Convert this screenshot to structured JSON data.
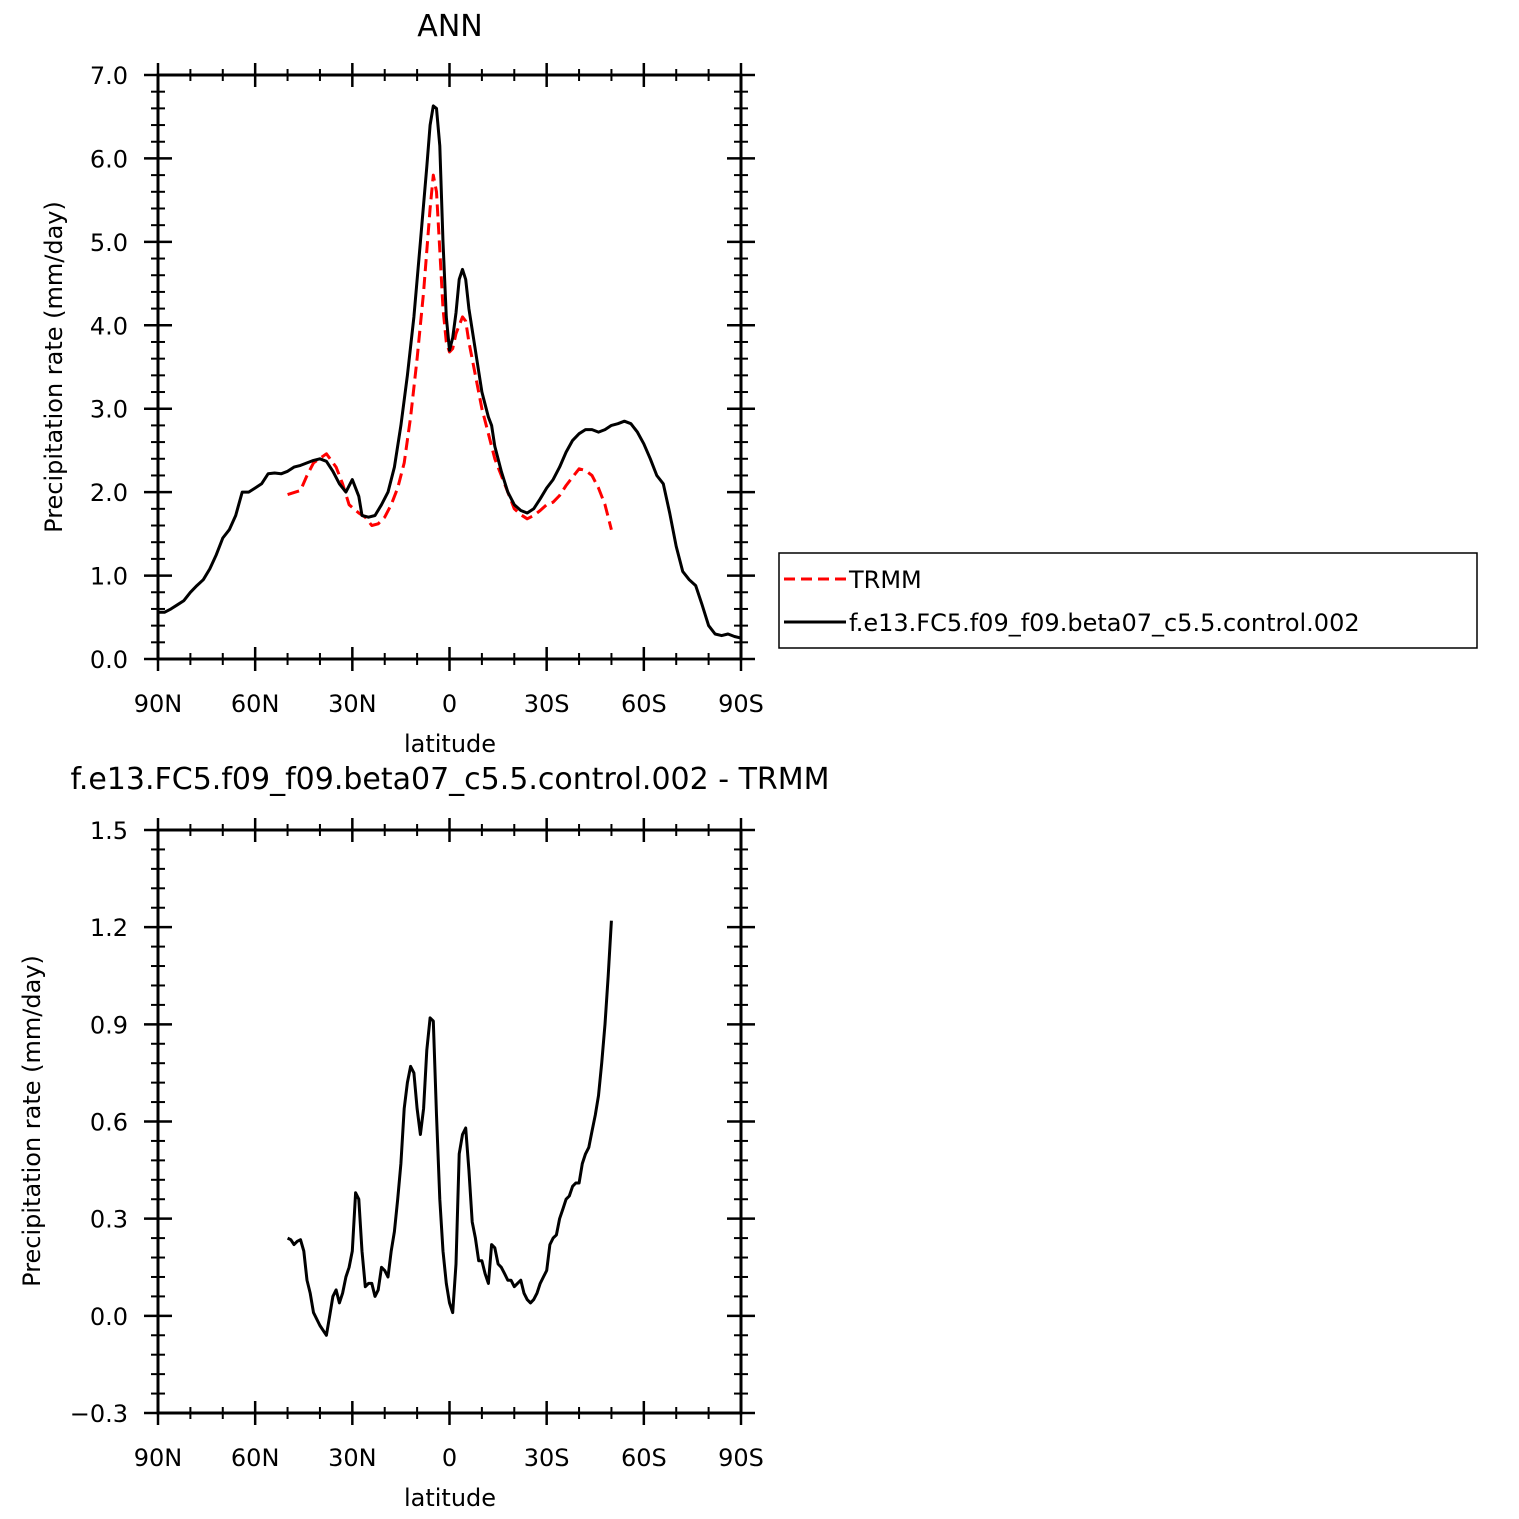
{
  "chart_data": [
    {
      "type": "line",
      "title": "ANN",
      "xlabel": "latitude",
      "ylabel": "Precipitation rate (mm/day)",
      "x_direction": "90N (left) to 90S (right); south latitudes shown as negative numbers",
      "xlim": [
        90,
        -90
      ],
      "ylim": [
        0,
        7
      ],
      "x_ticks": [
        90,
        60,
        30,
        0,
        -30,
        -60,
        -90
      ],
      "x_tick_labels": [
        "90N",
        "60N",
        "30N",
        "0",
        "30S",
        "60S",
        "90S"
      ],
      "y_ticks": [
        0,
        1,
        2,
        3,
        4,
        5,
        6,
        7
      ],
      "y_tick_labels": [
        "0.0",
        "1.0",
        "2.0",
        "3.0",
        "4.0",
        "5.0",
        "6.0",
        "7.0"
      ],
      "legend_position": "right",
      "series": [
        {
          "name": "TRMM",
          "color": "#ff0000",
          "dash": "dashed",
          "points": [
            [
              50,
              1.97
            ],
            [
              46,
              2.02
            ],
            [
              44,
              2.2
            ],
            [
              42,
              2.35
            ],
            [
              38,
              2.46
            ],
            [
              35,
              2.3
            ],
            [
              33,
              2.1
            ],
            [
              31,
              1.85
            ],
            [
              28,
              1.75
            ],
            [
              26,
              1.7
            ],
            [
              24,
              1.6
            ],
            [
              22,
              1.62
            ],
            [
              20,
              1.7
            ],
            [
              18,
              1.85
            ],
            [
              16,
              2.05
            ],
            [
              14,
              2.35
            ],
            [
              12,
              2.9
            ],
            [
              10,
              3.6
            ],
            [
              8,
              4.4
            ],
            [
              6,
              5.4
            ],
            [
              5,
              5.8
            ],
            [
              4,
              5.6
            ],
            [
              3,
              4.9
            ],
            [
              2,
              4.2
            ],
            [
              1,
              3.8
            ],
            [
              0,
              3.68
            ],
            [
              -1,
              3.72
            ],
            [
              -2,
              3.9
            ],
            [
              -4,
              4.1
            ],
            [
              -5,
              4.05
            ],
            [
              -6,
              3.8
            ],
            [
              -8,
              3.4
            ],
            [
              -10,
              3.0
            ],
            [
              -12,
              2.7
            ],
            [
              -14,
              2.4
            ],
            [
              -16,
              2.2
            ],
            [
              -18,
              2.0
            ],
            [
              -20,
              1.8
            ],
            [
              -22,
              1.73
            ],
            [
              -24,
              1.68
            ],
            [
              -26,
              1.72
            ],
            [
              -28,
              1.78
            ],
            [
              -30,
              1.85
            ],
            [
              -32,
              1.88
            ],
            [
              -34,
              1.96
            ],
            [
              -36,
              2.08
            ],
            [
              -38,
              2.18
            ],
            [
              -40,
              2.28
            ],
            [
              -42,
              2.26
            ],
            [
              -44,
              2.2
            ],
            [
              -46,
              2.05
            ],
            [
              -48,
              1.85
            ],
            [
              -50,
              1.55
            ]
          ]
        },
        {
          "name": "f.e13.FC5.f09_f09.beta07_c5.5.control.002",
          "color": "#000000",
          "dash": "solid",
          "points": [
            [
              90,
              0.56
            ],
            [
              88,
              0.56
            ],
            [
              86,
              0.6
            ],
            [
              84,
              0.65
            ],
            [
              82,
              0.7
            ],
            [
              80,
              0.8
            ],
            [
              78,
              0.88
            ],
            [
              76,
              0.95
            ],
            [
              74,
              1.08
            ],
            [
              72,
              1.25
            ],
            [
              70,
              1.45
            ],
            [
              68,
              1.55
            ],
            [
              66,
              1.72
            ],
            [
              64,
              2.0
            ],
            [
              62,
              2.0
            ],
            [
              60,
              2.05
            ],
            [
              58,
              2.1
            ],
            [
              56,
              2.22
            ],
            [
              54,
              2.23
            ],
            [
              52,
              2.22
            ],
            [
              50,
              2.25
            ],
            [
              48,
              2.3
            ],
            [
              46,
              2.32
            ],
            [
              44,
              2.35
            ],
            [
              42,
              2.38
            ],
            [
              40,
              2.4
            ],
            [
              38,
              2.37
            ],
            [
              36,
              2.25
            ],
            [
              34,
              2.1
            ],
            [
              32,
              2.0
            ],
            [
              30,
              2.15
            ],
            [
              28,
              1.95
            ],
            [
              27,
              1.72
            ],
            [
              25,
              1.7
            ],
            [
              23,
              1.72
            ],
            [
              21,
              1.85
            ],
            [
              19,
              2.0
            ],
            [
              17,
              2.3
            ],
            [
              15,
              2.8
            ],
            [
              13,
              3.4
            ],
            [
              11,
              4.1
            ],
            [
              9,
              5.0
            ],
            [
              7,
              5.9
            ],
            [
              6,
              6.4
            ],
            [
              5,
              6.63
            ],
            [
              4,
              6.6
            ],
            [
              3,
              6.15
            ],
            [
              2,
              5.0
            ],
            [
              1,
              4.1
            ],
            [
              0,
              3.7
            ],
            [
              -1,
              3.85
            ],
            [
              -2,
              4.15
            ],
            [
              -3,
              4.55
            ],
            [
              -4,
              4.67
            ],
            [
              -5,
              4.55
            ],
            [
              -6,
              4.2
            ],
            [
              -8,
              3.7
            ],
            [
              -10,
              3.2
            ],
            [
              -12,
              2.9
            ],
            [
              -13,
              2.8
            ],
            [
              -14,
              2.55
            ],
            [
              -16,
              2.25
            ],
            [
              -18,
              2.0
            ],
            [
              -20,
              1.85
            ],
            [
              -22,
              1.78
            ],
            [
              -24,
              1.75
            ],
            [
              -26,
              1.8
            ],
            [
              -28,
              1.92
            ],
            [
              -30,
              2.05
            ],
            [
              -32,
              2.15
            ],
            [
              -34,
              2.3
            ],
            [
              -36,
              2.48
            ],
            [
              -38,
              2.62
            ],
            [
              -40,
              2.7
            ],
            [
              -42,
              2.75
            ],
            [
              -44,
              2.75
            ],
            [
              -46,
              2.72
            ],
            [
              -48,
              2.75
            ],
            [
              -50,
              2.8
            ],
            [
              -52,
              2.82
            ],
            [
              -54,
              2.85
            ],
            [
              -56,
              2.82
            ],
            [
              -58,
              2.72
            ],
            [
              -60,
              2.58
            ],
            [
              -62,
              2.4
            ],
            [
              -64,
              2.2
            ],
            [
              -66,
              2.1
            ],
            [
              -68,
              1.75
            ],
            [
              -70,
              1.35
            ],
            [
              -72,
              1.05
            ],
            [
              -74,
              0.95
            ],
            [
              -76,
              0.88
            ],
            [
              -78,
              0.65
            ],
            [
              -80,
              0.4
            ],
            [
              -82,
              0.3
            ],
            [
              -84,
              0.28
            ],
            [
              -86,
              0.3
            ],
            [
              -88,
              0.27
            ],
            [
              -90,
              0.25
            ]
          ]
        }
      ]
    },
    {
      "type": "line",
      "title": "f.e13.FC5.f09_f09.beta07_c5.5.control.002 - TRMM",
      "xlabel": "latitude",
      "ylabel": "Precipitation rate (mm/day)",
      "x_direction": "90N (left) to 90S (right); south latitudes shown as negative numbers",
      "xlim": [
        90,
        -90
      ],
      "ylim": [
        -0.3,
        1.5
      ],
      "x_ticks": [
        90,
        60,
        30,
        0,
        -30,
        -60,
        -90
      ],
      "x_tick_labels": [
        "90N",
        "60N",
        "30N",
        "0",
        "30S",
        "60S",
        "90S"
      ],
      "y_ticks": [
        -0.3,
        0,
        0.3,
        0.6,
        0.9,
        1.2,
        1.5
      ],
      "y_tick_labels": [
        "-0.3",
        "0.0",
        "0.3",
        "0.6",
        "0.9",
        "1.2",
        "1.5"
      ],
      "series": [
        {
          "color": "#000000",
          "dash": "solid",
          "points": [
            [
              50,
              0.24
            ],
            [
              49,
              0.235
            ],
            [
              48,
              0.22
            ],
            [
              47,
              0.23
            ],
            [
              46,
              0.235
            ],
            [
              45,
              0.2
            ],
            [
              44,
              0.11
            ],
            [
              43,
              0.07
            ],
            [
              42,
              0.01
            ],
            [
              40,
              -0.03
            ],
            [
              38,
              -0.06
            ],
            [
              37,
              0.0
            ],
            [
              36,
              0.06
            ],
            [
              35,
              0.08
            ],
            [
              34,
              0.04
            ],
            [
              33,
              0.07
            ],
            [
              32,
              0.12
            ],
            [
              31,
              0.15
            ],
            [
              30,
              0.2
            ],
            [
              29,
              0.38
            ],
            [
              28,
              0.36
            ],
            [
              27,
              0.2
            ],
            [
              26,
              0.09
            ],
            [
              25,
              0.1
            ],
            [
              24,
              0.1
            ],
            [
              23,
              0.06
            ],
            [
              22,
              0.08
            ],
            [
              21,
              0.15
            ],
            [
              20,
              0.14
            ],
            [
              19,
              0.12
            ],
            [
              18,
              0.2
            ],
            [
              17,
              0.26
            ],
            [
              16,
              0.36
            ],
            [
              15,
              0.47
            ],
            [
              14,
              0.64
            ],
            [
              13,
              0.72
            ],
            [
              12,
              0.77
            ],
            [
              11,
              0.75
            ],
            [
              10,
              0.64
            ],
            [
              9,
              0.56
            ],
            [
              8,
              0.64
            ],
            [
              7,
              0.82
            ],
            [
              6,
              0.92
            ],
            [
              5,
              0.91
            ],
            [
              4,
              0.62
            ],
            [
              3,
              0.36
            ],
            [
              2,
              0.2
            ],
            [
              1,
              0.1
            ],
            [
              0,
              0.04
            ],
            [
              -1,
              0.01
            ],
            [
              -2,
              0.16
            ],
            [
              -3,
              0.5
            ],
            [
              -4,
              0.56
            ],
            [
              -5,
              0.58
            ],
            [
              -6,
              0.45
            ],
            [
              -7,
              0.29
            ],
            [
              -8,
              0.24
            ],
            [
              -9,
              0.17
            ],
            [
              -10,
              0.17
            ],
            [
              -11,
              0.13
            ],
            [
              -12,
              0.1
            ],
            [
              -13,
              0.22
            ],
            [
              -14,
              0.21
            ],
            [
              -15,
              0.16
            ],
            [
              -16,
              0.15
            ],
            [
              -17,
              0.13
            ],
            [
              -18,
              0.11
            ],
            [
              -19,
              0.11
            ],
            [
              -20,
              0.09
            ],
            [
              -21,
              0.1
            ],
            [
              -22,
              0.11
            ],
            [
              -23,
              0.07
            ],
            [
              -24,
              0.05
            ],
            [
              -25,
              0.04
            ],
            [
              -26,
              0.05
            ],
            [
              -27,
              0.07
            ],
            [
              -28,
              0.1
            ],
            [
              -29,
              0.12
            ],
            [
              -30,
              0.14
            ],
            [
              -31,
              0.22
            ],
            [
              -32,
              0.24
            ],
            [
              -33,
              0.25
            ],
            [
              -34,
              0.3
            ],
            [
              -35,
              0.33
            ],
            [
              -36,
              0.36
            ],
            [
              -37,
              0.37
            ],
            [
              -38,
              0.4
            ],
            [
              -39,
              0.41
            ],
            [
              -40,
              0.41
            ],
            [
              -41,
              0.47
            ],
            [
              -42,
              0.5
            ],
            [
              -43,
              0.52
            ],
            [
              -44,
              0.57
            ],
            [
              -45,
              0.62
            ],
            [
              -46,
              0.68
            ],
            [
              -47,
              0.78
            ],
            [
              -48,
              0.9
            ],
            [
              -49,
              1.05
            ],
            [
              -50,
              1.22
            ]
          ]
        }
      ]
    }
  ]
}
